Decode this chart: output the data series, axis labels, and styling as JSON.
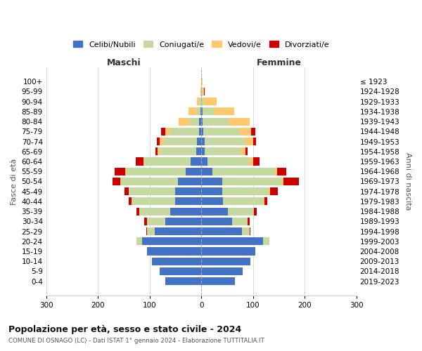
{
  "age_groups": [
    "0-4",
    "5-9",
    "10-14",
    "15-19",
    "20-24",
    "25-29",
    "30-34",
    "35-39",
    "40-44",
    "45-49",
    "50-54",
    "55-59",
    "60-64",
    "65-69",
    "70-74",
    "75-79",
    "80-84",
    "85-89",
    "90-94",
    "95-99",
    "100+"
  ],
  "birth_years": [
    "2019-2023",
    "2014-2018",
    "2009-2013",
    "2004-2008",
    "1999-2003",
    "1994-1998",
    "1989-1993",
    "1984-1988",
    "1979-1983",
    "1974-1978",
    "1969-1973",
    "1964-1968",
    "1959-1963",
    "1954-1958",
    "1949-1953",
    "1944-1948",
    "1939-1943",
    "1934-1938",
    "1929-1933",
    "1924-1928",
    "≤ 1923"
  ],
  "colors": {
    "celibi": "#4472c4",
    "coniugati": "#c5d9a0",
    "vedovi": "#ffc86e",
    "divorziati": "#cc0000"
  },
  "maschi": {
    "celibi": [
      70,
      80,
      95,
      105,
      115,
      90,
      70,
      60,
      50,
      50,
      45,
      30,
      20,
      10,
      8,
      5,
      4,
      2,
      0,
      0,
      0
    ],
    "coniugati": [
      0,
      0,
      0,
      0,
      10,
      15,
      35,
      60,
      85,
      90,
      110,
      115,
      90,
      70,
      65,
      55,
      20,
      8,
      3,
      0,
      0
    ],
    "vedovi": [
      0,
      0,
      0,
      0,
      0,
      0,
      0,
      0,
      0,
      0,
      2,
      2,
      2,
      4,
      8,
      10,
      20,
      15,
      5,
      2,
      0
    ],
    "divorziati": [
      0,
      0,
      0,
      0,
      0,
      2,
      5,
      5,
      5,
      8,
      15,
      20,
      15,
      5,
      5,
      8,
      0,
      0,
      0,
      0,
      0
    ]
  },
  "femmine": {
    "celibi": [
      65,
      80,
      95,
      105,
      120,
      78,
      60,
      52,
      42,
      40,
      40,
      22,
      12,
      6,
      6,
      4,
      3,
      2,
      0,
      0,
      0
    ],
    "coniugati": [
      0,
      0,
      0,
      0,
      12,
      15,
      30,
      50,
      78,
      90,
      115,
      120,
      80,
      70,
      80,
      70,
      50,
      22,
      5,
      0,
      0
    ],
    "vedovi": [
      0,
      0,
      0,
      0,
      0,
      0,
      0,
      0,
      2,
      3,
      4,
      5,
      8,
      10,
      15,
      22,
      40,
      40,
      25,
      5,
      2
    ],
    "divorziati": [
      0,
      0,
      0,
      0,
      0,
      2,
      3,
      5,
      5,
      15,
      30,
      18,
      12,
      3,
      5,
      8,
      0,
      0,
      0,
      2,
      0
    ]
  },
  "title": "Popolazione per età, sesso e stato civile - 2024",
  "subtitle": "COMUNE DI OSNAGO (LC) - Dati ISTAT 1° gennaio 2024 - Elaborazione TUTTITALIA.IT",
  "xlabel_left": "Maschi",
  "xlabel_right": "Femmine",
  "ylabel_left": "Fasce di età",
  "ylabel_right": "Anni di nascita",
  "xlim": 300,
  "legend_labels": [
    "Celibi/Nubili",
    "Coniugati/e",
    "Vedovi/e",
    "Divorziati/e"
  ],
  "background_color": "#ffffff",
  "grid_color": "#cccccc"
}
